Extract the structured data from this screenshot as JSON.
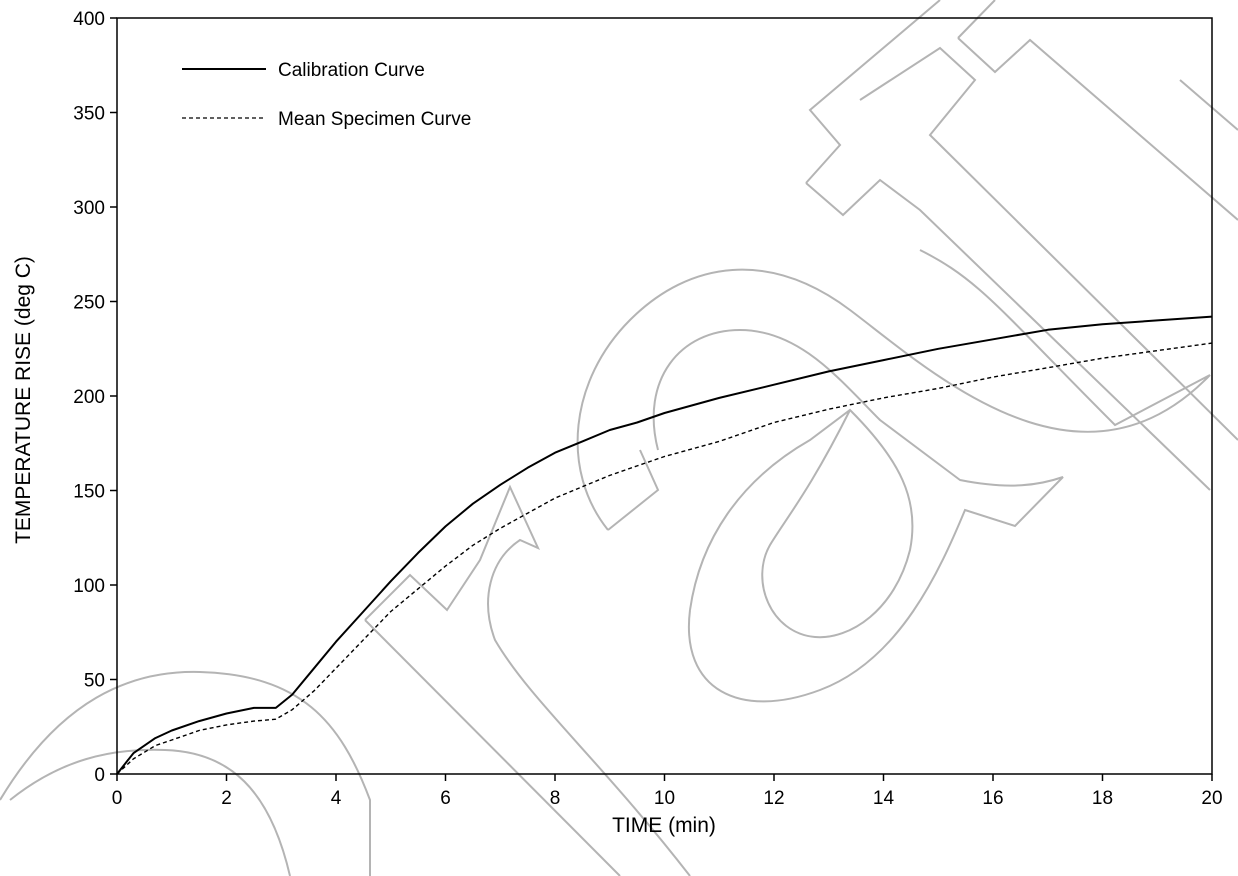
{
  "chart_data": {
    "type": "line",
    "xlabel": "TIME (min)",
    "ylabel": "TEMPERATURE  RISE  (deg C)",
    "xlim": [
      0,
      20
    ],
    "ylim": [
      0,
      400
    ],
    "x_ticks": [
      0,
      2,
      4,
      6,
      8,
      10,
      12,
      14,
      16,
      18,
      20
    ],
    "y_ticks": [
      0,
      50,
      100,
      150,
      200,
      250,
      300,
      350,
      400
    ],
    "grid": false,
    "legend_position": "top-left",
    "series": [
      {
        "name": "Calibration Curve",
        "style": "solid",
        "x": [
          0,
          0.3,
          0.7,
          1,
          1.5,
          2,
          2.5,
          2.9,
          3.2,
          3.6,
          4,
          4.5,
          5,
          5.5,
          6,
          6.5,
          7,
          7.5,
          8,
          8.5,
          9,
          9.5,
          10,
          11,
          12,
          13,
          14,
          15,
          16,
          17,
          18,
          19,
          20
        ],
        "y": [
          0,
          11,
          19,
          23,
          28,
          32,
          35,
          35,
          42,
          56,
          70,
          86,
          102,
          117,
          131,
          143,
          153,
          162,
          170,
          176,
          182,
          186,
          191,
          199,
          206,
          213,
          219,
          225,
          230,
          235,
          238,
          240,
          242
        ]
      },
      {
        "name": "Mean Specimen Curve",
        "style": "dashed",
        "x": [
          0,
          0.3,
          0.7,
          1,
          1.5,
          2,
          2.5,
          2.9,
          3.2,
          3.6,
          4,
          4.5,
          5,
          5.5,
          6,
          6.5,
          7,
          7.5,
          8,
          8.5,
          9,
          9.5,
          10,
          11,
          12,
          13,
          14,
          15,
          16,
          17,
          18,
          19,
          20
        ],
        "y": [
          0,
          8,
          15,
          18,
          23,
          26,
          28,
          29,
          34,
          44,
          56,
          71,
          86,
          98,
          110,
          121,
          130,
          138,
          146,
          152,
          158,
          163,
          168,
          176,
          186,
          193,
          199,
          204,
          210,
          215,
          220,
          224,
          228
        ]
      }
    ]
  },
  "watermark": {
    "color": "#b4b4b4"
  }
}
